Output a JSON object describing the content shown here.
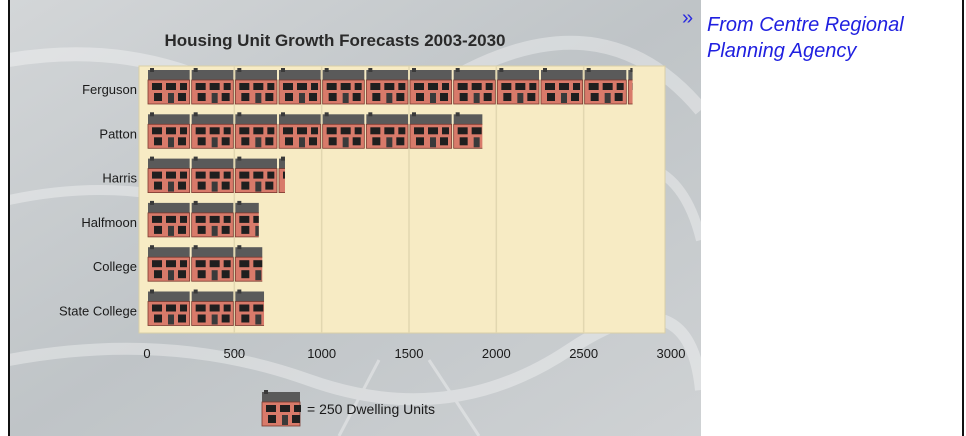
{
  "caption": {
    "bullet": "»",
    "lines": [
      "From Centre Regional",
      "Planning Agency"
    ]
  },
  "legend": {
    "text": "= 250 Dwelling Units",
    "icon": "house-icon"
  },
  "colors": {
    "plot_bg": "#f7ebc4",
    "house_body": "#d87a6a",
    "house_roof": "#5a5a5a",
    "title": "#2a2a2a",
    "background": "#c9cdd0"
  },
  "chart_data": {
    "type": "bar",
    "orientation": "horizontal",
    "title": "Housing Unit Growth Forecasts 2003-2030",
    "categories": [
      "Ferguson",
      "Patton",
      "Harris",
      "Halfmoon",
      "College",
      "State College"
    ],
    "values": [
      2780,
      1920,
      790,
      640,
      660,
      670
    ],
    "units_per_icon": 250,
    "xlim": [
      0,
      3000
    ],
    "xticks": [
      0,
      500,
      1000,
      1500,
      2000,
      2500,
      3000
    ],
    "xlabel": "",
    "ylabel": "",
    "grid": true
  }
}
